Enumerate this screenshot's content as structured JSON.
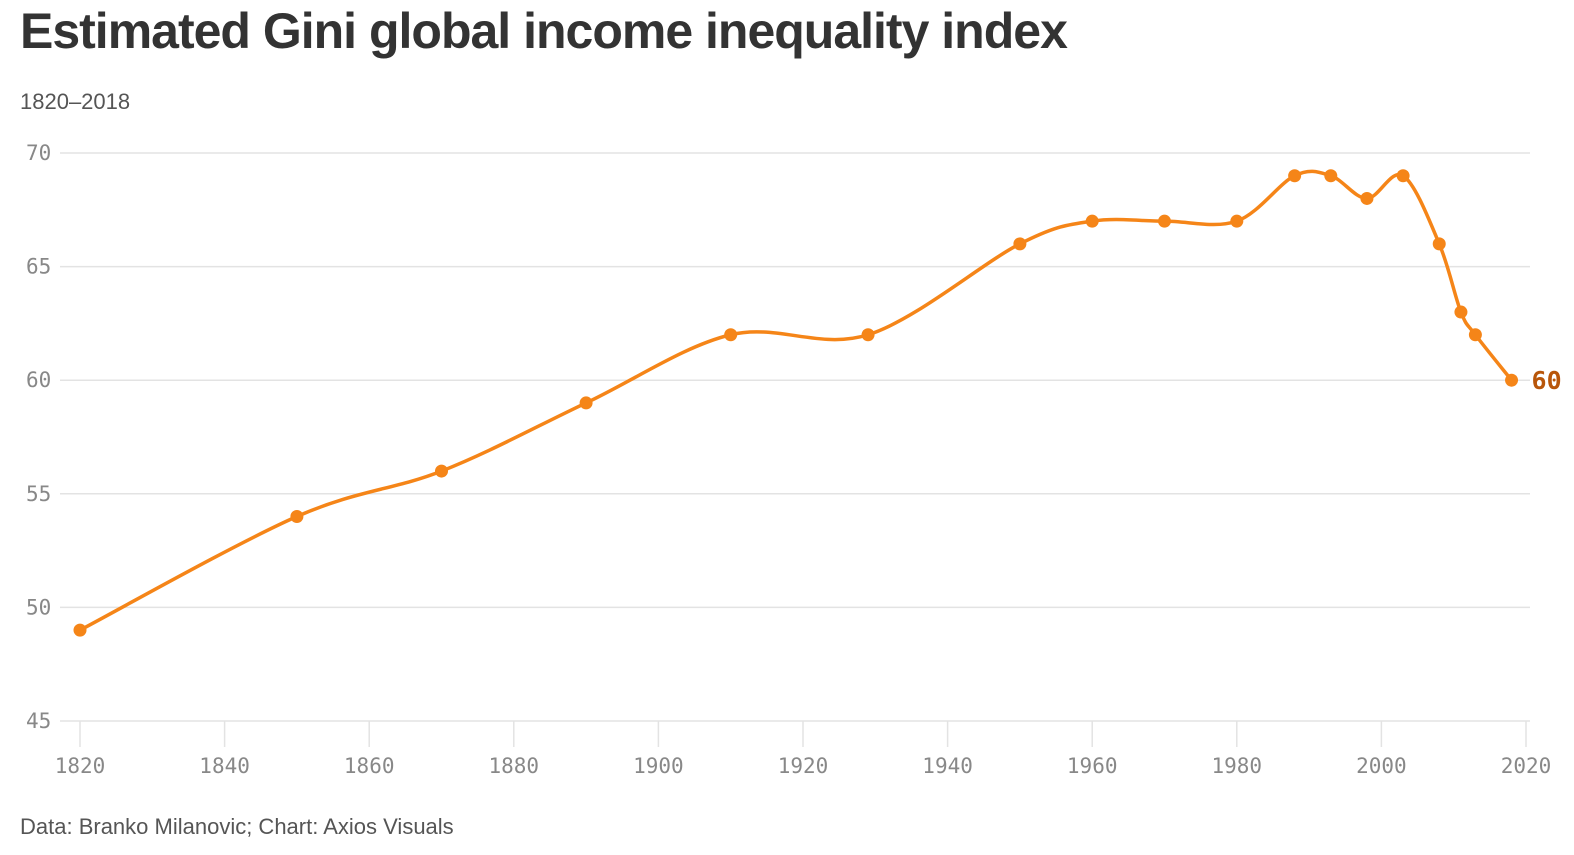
{
  "header": {
    "title": "Estimated Gini global income inequality index",
    "subtitle": "1820–2018"
  },
  "footer": {
    "source": "Data: Branko Milanovic; Chart: Axios Visuals"
  },
  "colors": {
    "line": "#f58518",
    "end_label": "#b8560a",
    "grid": "#e3e3e3",
    "tick_text": "#888888"
  },
  "chart_data": {
    "type": "line",
    "title": "Estimated Gini global income inequality index",
    "subtitle": "1820–2018",
    "xlabel": "",
    "ylabel": "",
    "xlim": [
      1820,
      2020
    ],
    "ylim": [
      45,
      70
    ],
    "xticks": [
      1820,
      1840,
      1860,
      1880,
      1900,
      1920,
      1940,
      1960,
      1980,
      2000,
      2020
    ],
    "yticks": [
      45,
      50,
      55,
      60,
      65,
      70
    ],
    "grid": true,
    "legend": "none",
    "x": [
      1820,
      1850,
      1870,
      1890,
      1910,
      1929,
      1950,
      1960,
      1970,
      1980,
      1988,
      1993,
      1998,
      2003,
      2008,
      2011,
      2013,
      2018
    ],
    "series": [
      {
        "values": [
          49,
          54,
          56,
          59,
          62,
          62,
          66,
          67,
          67,
          67,
          69,
          69,
          68,
          69,
          66,
          63,
          62,
          60
        ]
      }
    ],
    "end_label": "60"
  }
}
